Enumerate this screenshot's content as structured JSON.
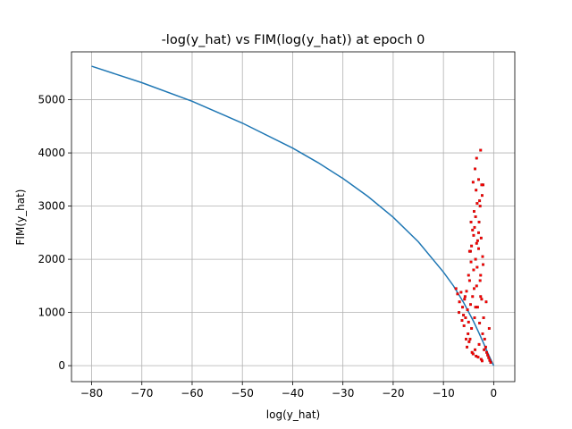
{
  "chart_data": {
    "type": "scatter",
    "title": "-log(y_hat) vs FIM(log(y_hat)) at epoch 0",
    "xlabel": "log(y_hat)",
    "ylabel": "FIM(y_hat)",
    "xlim": [
      -84,
      4.2
    ],
    "ylim": [
      -300,
      5900
    ],
    "xticks": [
      -80,
      -70,
      -60,
      -50,
      -40,
      -30,
      -20,
      -10,
      0
    ],
    "xtick_labels": [
      "−80",
      "−70",
      "−60",
      "−50",
      "−40",
      "−30",
      "−20",
      "−10",
      "0"
    ],
    "yticks": [
      0,
      1000,
      2000,
      3000,
      4000,
      5000
    ],
    "ytick_labels": [
      "0",
      "1000",
      "2000",
      "3000",
      "4000",
      "5000"
    ],
    "grid": true,
    "series": [
      {
        "kind": "line",
        "color": "#1f77b4",
        "x": [
          -80,
          -70,
          -60,
          -50,
          -40,
          -35,
          -30,
          -25,
          -20,
          -15,
          -10,
          -8,
          -6,
          -5,
          -4,
          -3,
          -2,
          -1,
          0
        ],
        "y": [
          5630,
          5320,
          4970,
          4560,
          4090,
          3820,
          3520,
          3180,
          2790,
          2330,
          1760,
          1500,
          1190,
          1010,
          830,
          630,
          420,
          200,
          0
        ]
      },
      {
        "kind": "scatter",
        "color": "#ff0000",
        "edgecolor": "#8b0000",
        "x": [
          -7.5,
          -7.2,
          -6.8,
          -6.5,
          -6.2,
          -6.0,
          -5.8,
          -5.6,
          -5.4,
          -5.2,
          -5.0,
          -4.8,
          -4.6,
          -4.4,
          -4.2,
          -4.0,
          -3.8,
          -3.6,
          -3.4,
          -3.2,
          -3.0,
          -2.8,
          -2.6,
          -2.4,
          -2.2,
          -2.0,
          -1.8,
          -1.6,
          -1.4,
          -1.2,
          -1.0,
          -0.8,
          -0.6,
          -6.9,
          -6.3,
          -5.7,
          -5.1,
          -4.5,
          -3.9,
          -3.3,
          -2.7,
          -2.1,
          -1.5,
          -0.9,
          -5.9,
          -4.9,
          -3.7,
          -2.9,
          -1.9,
          -4.3,
          -3.5,
          -2.5,
          -5.3,
          -4.1,
          -3.1,
          -2.3,
          -4.7,
          -3.6,
          -2.6,
          -5.5,
          -4.6,
          -3.4,
          -2.2,
          -3.0,
          -4.0,
          -2.5,
          -3.8,
          -2.9,
          -4.4,
          -3.2,
          -5.0,
          -3.6,
          -2.7,
          -4.2,
          -3.3,
          -2.1,
          -3.9,
          -2.8,
          -4.8,
          -3.5,
          -2.4,
          -4.5,
          -3.7,
          -2.6,
          -4.1,
          -3.0,
          -3.4,
          -2.3
        ],
        "y": [
          1450,
          1350,
          1200,
          1380,
          1100,
          950,
          1250,
          900,
          1400,
          1050,
          820,
          1600,
          1150,
          700,
          1300,
          1800,
          900,
          2000,
          1500,
          1100,
          2200,
          800,
          1700,
          1250,
          600,
          900,
          500,
          350,
          250,
          200,
          150,
          100,
          60,
          1000,
          850,
          1300,
          600,
          1950,
          1450,
          1850,
          1600,
          1900,
          1200,
          700,
          750,
          450,
          300,
          400,
          300,
          250,
          180,
          120,
          350,
          220,
          160,
          90,
          500,
          1100,
          1300,
          500,
          2150,
          2300,
          2050,
          2500,
          2450,
          2400,
          2600,
          2700,
          2250,
          2350,
          1700,
          2800,
          3000,
          2550,
          3050,
          3400,
          2900,
          3100,
          2150,
          3300,
          3400,
          2700,
          3700,
          4050,
          3450,
          3500,
          3900,
          3200
        ]
      }
    ]
  }
}
